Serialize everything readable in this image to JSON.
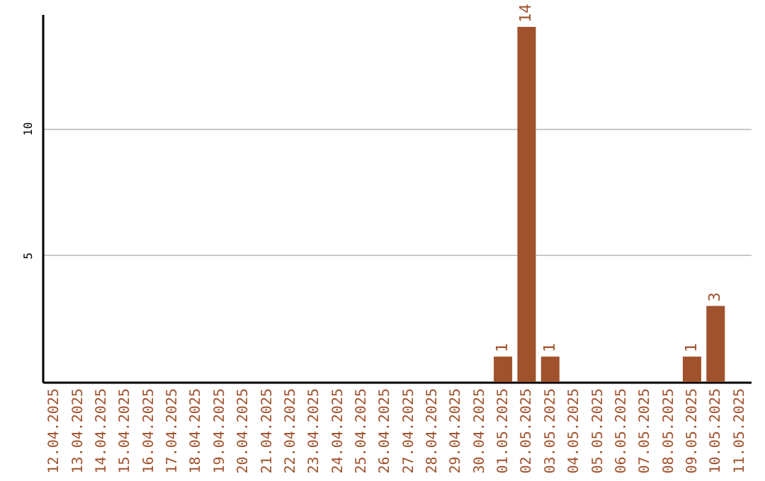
{
  "chart_data": {
    "type": "bar",
    "categories": [
      "12.04.2025",
      "13.04.2025",
      "14.04.2025",
      "15.04.2025",
      "16.04.2025",
      "17.04.2025",
      "18.04.2025",
      "19.04.2025",
      "20.04.2025",
      "21.04.2025",
      "22.04.2025",
      "23.04.2025",
      "24.04.2025",
      "25.04.2025",
      "26.04.2025",
      "27.04.2025",
      "28.04.2025",
      "29.04.2025",
      "30.04.2025",
      "01.05.2025",
      "02.05.2025",
      "03.05.2025",
      "04.05.2025",
      "05.05.2025",
      "06.05.2025",
      "07.05.2025",
      "08.05.2025",
      "09.05.2025",
      "10.05.2025",
      "11.05.2025"
    ],
    "values": [
      0,
      0,
      0,
      0,
      0,
      0,
      0,
      0,
      0,
      0,
      0,
      0,
      0,
      0,
      0,
      0,
      0,
      0,
      0,
      1,
      14,
      1,
      0,
      0,
      0,
      0,
      0,
      1,
      3,
      0
    ],
    "value_labels": [
      null,
      null,
      null,
      null,
      null,
      null,
      null,
      null,
      null,
      null,
      null,
      null,
      null,
      null,
      null,
      null,
      null,
      null,
      null,
      "1",
      "14",
      "1",
      null,
      null,
      null,
      null,
      null,
      "1",
      "3",
      null
    ],
    "color": "#a0522d",
    "ylim": [
      0,
      14.5
    ],
    "yticks": [
      5,
      10
    ],
    "grid": "y"
  }
}
